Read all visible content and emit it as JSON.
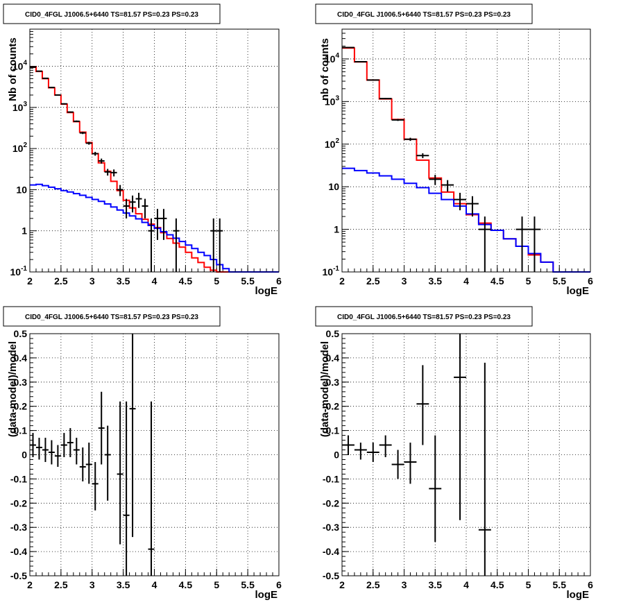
{
  "colors": {
    "data": "#000000",
    "total_model": "#ff0000",
    "background_model": "#0000ff",
    "grid": "#000000"
  },
  "chart_data": [
    {
      "type": "histogram",
      "title": "CID0_4FGL J1006.5+6440 TS=81.57 PS=0.23 PS=0.23",
      "xlabel": "logE",
      "ylabel": "Nb of counts",
      "xlim": [
        2,
        6
      ],
      "ylim": [
        0.1,
        80000
      ],
      "log_y": true,
      "grid": true,
      "x_ticks": [
        "2",
        "2.5",
        "3",
        "3.5",
        "4",
        "4.5",
        "5",
        "5.5",
        "6"
      ],
      "y_ticks": [
        "10^-1",
        "1",
        "10",
        "10^2",
        "10^3",
        "10^4"
      ],
      "bin_edges": [
        2.0,
        2.1,
        2.2,
        2.3,
        2.4,
        2.5,
        2.6,
        2.7,
        2.8,
        2.9,
        3.0,
        3.1,
        3.2,
        3.3,
        3.4,
        3.5,
        3.6,
        3.7,
        3.8,
        3.9,
        4.0,
        4.1,
        4.2,
        4.3,
        4.4,
        4.5,
        4.6,
        4.7,
        4.8,
        4.9,
        5.0,
        5.1,
        5.2,
        5.3,
        5.4,
        5.5,
        5.6,
        5.7,
        5.8,
        5.9,
        6.0
      ],
      "series": [
        {
          "kind": "step",
          "color": "#ff0000",
          "values": [
            9500,
            7500,
            5000,
            3000,
            2000,
            1200,
            750,
            450,
            250,
            140,
            75,
            45,
            28,
            16,
            9.5,
            5.5,
            3.6,
            2.6,
            1.9,
            1.45,
            1.2,
            0.9,
            0.65,
            0.5,
            0.4,
            0.3,
            0.22,
            0.17,
            0.13,
            0.11,
            0.1,
            0.1,
            0.1,
            0.1,
            0.1,
            0.1,
            0.1,
            0.1,
            0.1,
            0.1
          ]
        },
        {
          "kind": "step",
          "color": "#0000ff",
          "values": [
            13,
            13.5,
            12.5,
            11.5,
            10.5,
            9.5,
            8.8,
            8,
            7.3,
            6.5,
            5.8,
            5.2,
            4.5,
            3.8,
            3.2,
            2.7,
            2.3,
            1.95,
            1.6,
            1.35,
            1.15,
            0.95,
            0.8,
            0.66,
            0.55,
            0.45,
            0.37,
            0.3,
            0.25,
            0.2,
            0.15,
            0.12,
            0.1,
            0.1,
            0.1,
            0.1,
            0.1,
            0.1,
            0.1,
            0.1
          ]
        },
        {
          "kind": "points",
          "color": "#000000",
          "points": [
            {
              "x": 2.05,
              "y": 9500,
              "lo": 9300,
              "hi": 9700
            },
            {
              "x": 2.15,
              "y": 7600,
              "lo": 7400,
              "hi": 7800
            },
            {
              "x": 2.25,
              "y": 5100,
              "lo": 4950,
              "hi": 5250
            },
            {
              "x": 2.35,
              "y": 3050,
              "lo": 2950,
              "hi": 3150
            },
            {
              "x": 2.45,
              "y": 2000,
              "lo": 1950,
              "hi": 2050
            },
            {
              "x": 2.55,
              "y": 1220,
              "lo": 1180,
              "hi": 1260
            },
            {
              "x": 2.65,
              "y": 770,
              "lo": 740,
              "hi": 800
            },
            {
              "x": 2.75,
              "y": 460,
              "lo": 440,
              "hi": 480
            },
            {
              "x": 2.85,
              "y": 240,
              "lo": 225,
              "hi": 255
            },
            {
              "x": 2.95,
              "y": 135,
              "lo": 124,
              "hi": 146
            },
            {
              "x": 3.05,
              "y": 75,
              "lo": 67,
              "hi": 83
            },
            {
              "x": 3.15,
              "y": 50,
              "lo": 43,
              "hi": 57
            },
            {
              "x": 3.25,
              "y": 27,
              "lo": 22,
              "hi": 32
            },
            {
              "x": 3.35,
              "y": 26,
              "lo": 21,
              "hi": 31
            },
            {
              "x": 3.45,
              "y": 10,
              "lo": 7,
              "hi": 13
            },
            {
              "x": 3.55,
              "y": 4,
              "lo": 2,
              "hi": 6
            },
            {
              "x": 3.65,
              "y": 5,
              "lo": 2.8,
              "hi": 7.2
            },
            {
              "x": 3.75,
              "y": 6,
              "lo": 3.6,
              "hi": 8.4
            },
            {
              "x": 3.85,
              "y": 4,
              "lo": 2,
              "hi": 6
            },
            {
              "x": 3.95,
              "y": 1,
              "lo": 0.1,
              "hi": 2
            },
            {
              "x": 4.05,
              "y": 2,
              "lo": 0.6,
              "hi": 3.4
            },
            {
              "x": 4.15,
              "y": 2,
              "lo": 0.6,
              "hi": 3.4
            },
            {
              "x": 4.35,
              "y": 1,
              "lo": 0.1,
              "hi": 2
            },
            {
              "x": 4.95,
              "y": 1,
              "lo": 0.1,
              "hi": 2
            },
            {
              "x": 5.05,
              "y": 1,
              "lo": 0.1,
              "hi": 2
            }
          ]
        }
      ]
    },
    {
      "type": "histogram",
      "title": "CID0_4FGL J1006.5+6440 TS=81.57 PS=0.23 PS=0.23",
      "xlabel": "logE",
      "ylabel": "nb of counts",
      "xlim": [
        2,
        6
      ],
      "ylim": [
        0.1,
        50000
      ],
      "log_y": true,
      "grid": true,
      "x_ticks": [
        "2",
        "2.5",
        "3",
        "3.5",
        "4",
        "4.5",
        "5",
        "5.5",
        "6"
      ],
      "y_ticks": [
        "10^-1",
        "1",
        "10",
        "10^2",
        "10^3",
        "10^4"
      ],
      "bin_edges": [
        2.0,
        2.2,
        2.4,
        2.6,
        2.8,
        3.0,
        3.2,
        3.4,
        3.6,
        3.8,
        4.0,
        4.2,
        4.4,
        4.6,
        4.8,
        5.0,
        5.2,
        5.4,
        5.6,
        5.8,
        6.0
      ],
      "series": [
        {
          "kind": "step",
          "color": "#ff0000",
          "values": [
            18000,
            8500,
            3200,
            1150,
            380,
            130,
            42,
            16,
            7.5,
            4,
            2.2,
            1.4,
            0.95,
            0.6,
            0.4,
            0.25,
            0.17,
            0.1,
            0.1,
            0.1
          ]
        },
        {
          "kind": "step",
          "color": "#0000ff",
          "values": [
            27,
            24,
            21,
            18,
            15,
            12,
            9.5,
            7,
            5,
            3.5,
            2.3,
            1.3,
            0.95,
            0.6,
            0.4,
            0.27,
            0.17,
            0.1,
            0.1,
            0.1
          ]
        },
        {
          "kind": "points",
          "color": "#000000",
          "points": [
            {
              "x": 2.1,
              "y": 18500,
              "lo": 18200,
              "hi": 18800
            },
            {
              "x": 2.3,
              "y": 8600,
              "lo": 8400,
              "hi": 8800
            },
            {
              "x": 2.5,
              "y": 3200,
              "lo": 3100,
              "hi": 3300
            },
            {
              "x": 2.7,
              "y": 1170,
              "lo": 1130,
              "hi": 1210
            },
            {
              "x": 2.9,
              "y": 370,
              "lo": 350,
              "hi": 390
            },
            {
              "x": 3.1,
              "y": 130,
              "lo": 119,
              "hi": 141
            },
            {
              "x": 3.3,
              "y": 54,
              "lo": 47,
              "hi": 61
            },
            {
              "x": 3.5,
              "y": 15,
              "lo": 11,
              "hi": 19
            },
            {
              "x": 3.7,
              "y": 11,
              "lo": 7.7,
              "hi": 14.3
            },
            {
              "x": 3.9,
              "y": 5,
              "lo": 2.8,
              "hi": 7.2
            },
            {
              "x": 4.1,
              "y": 4,
              "lo": 2,
              "hi": 6
            },
            {
              "x": 4.3,
              "y": 1,
              "lo": 0.1,
              "hi": 2
            },
            {
              "x": 4.9,
              "y": 1,
              "lo": 0.1,
              "hi": 2
            },
            {
              "x": 5.1,
              "y": 1,
              "lo": 0.1,
              "hi": 2
            }
          ]
        }
      ]
    },
    {
      "type": "scatter",
      "title": "CID0_4FGL J1006.5+6440 TS=81.57 PS=0.23 PS=0.23",
      "xlabel": "logE",
      "ylabel": "(data-model)/model",
      "xlim": [
        2,
        6
      ],
      "ylim": [
        -0.5,
        0.5
      ],
      "log_y": false,
      "grid": true,
      "x_ticks": [
        "2",
        "2.5",
        "3",
        "3.5",
        "4",
        "4.5",
        "5",
        "5.5",
        "6"
      ],
      "y_ticks": [
        "-0.5",
        "-0.4",
        "-0.3",
        "-0.2",
        "-0.1",
        "0",
        "0.1",
        "0.2",
        "0.3",
        "0.4",
        "0.5"
      ],
      "half_bin": 0.05,
      "points": [
        {
          "x": 2.05,
          "y": 0.04,
          "lo": -0.01,
          "hi": 0.09
        },
        {
          "x": 2.15,
          "y": 0.03,
          "lo": -0.02,
          "hi": 0.07
        },
        {
          "x": 2.25,
          "y": 0.02,
          "lo": -0.03,
          "hi": 0.07
        },
        {
          "x": 2.35,
          "y": 0.01,
          "lo": -0.04,
          "hi": 0.06
        },
        {
          "x": 2.45,
          "y": -0.005,
          "lo": -0.05,
          "hi": 0.04
        },
        {
          "x": 2.55,
          "y": 0.04,
          "lo": -0.01,
          "hi": 0.09
        },
        {
          "x": 2.65,
          "y": 0.05,
          "lo": -0.01,
          "hi": 0.11
        },
        {
          "x": 2.75,
          "y": 0.02,
          "lo": -0.04,
          "hi": 0.07
        },
        {
          "x": 2.85,
          "y": -0.05,
          "lo": -0.11,
          "hi": 0.03
        },
        {
          "x": 2.95,
          "y": -0.04,
          "lo": -0.12,
          "hi": 0.05
        },
        {
          "x": 3.05,
          "y": -0.12,
          "lo": -0.23,
          "hi": -0.03
        },
        {
          "x": 3.15,
          "y": 0.11,
          "lo": -0.04,
          "hi": 0.26
        },
        {
          "x": 3.25,
          "y": 0.0,
          "lo": -0.19,
          "hi": 0.12
        },
        {
          "x": 3.45,
          "y": -0.08,
          "lo": -0.37,
          "hi": 0.22
        },
        {
          "x": 3.55,
          "y": -0.25,
          "lo": -0.5,
          "hi": 0.22
        },
        {
          "x": 3.65,
          "y": 0.19,
          "lo": -0.34,
          "hi": 0.5
        },
        {
          "x": 3.95,
          "y": -0.39,
          "lo": -0.5,
          "hi": 0.22
        }
      ]
    },
    {
      "type": "scatter",
      "title": "CID0_4FGL J1006.5+6440 TS=81.57 PS=0.23 PS=0.23",
      "xlabel": "logE",
      "ylabel": "(data-model)/model",
      "xlim": [
        2,
        6
      ],
      "ylim": [
        -0.5,
        0.5
      ],
      "log_y": false,
      "grid": true,
      "x_ticks": [
        "2",
        "2.5",
        "3",
        "3.5",
        "4",
        "4.5",
        "5",
        "5.5",
        "6"
      ],
      "y_ticks": [
        "-0.5",
        "-0.4",
        "-0.3",
        "-0.2",
        "-0.1",
        "0",
        "0.1",
        "0.2",
        "0.3",
        "0.4",
        "0.5"
      ],
      "half_bin": 0.1,
      "points": [
        {
          "x": 2.1,
          "y": 0.04,
          "lo": 0.0,
          "hi": 0.08
        },
        {
          "x": 2.3,
          "y": 0.02,
          "lo": -0.02,
          "hi": 0.05
        },
        {
          "x": 2.5,
          "y": 0.01,
          "lo": -0.03,
          "hi": 0.05
        },
        {
          "x": 2.7,
          "y": 0.04,
          "lo": -0.01,
          "hi": 0.08
        },
        {
          "x": 2.9,
          "y": -0.04,
          "lo": -0.1,
          "hi": 0.02
        },
        {
          "x": 3.1,
          "y": -0.03,
          "lo": -0.12,
          "hi": 0.05
        },
        {
          "x": 3.3,
          "y": 0.21,
          "lo": 0.04,
          "hi": 0.37
        },
        {
          "x": 3.5,
          "y": -0.14,
          "lo": -0.36,
          "hi": 0.08
        },
        {
          "x": 3.9,
          "y": 0.32,
          "lo": -0.27,
          "hi": 0.5
        },
        {
          "x": 4.3,
          "y": -0.31,
          "lo": -0.5,
          "hi": 0.38
        }
      ]
    }
  ]
}
